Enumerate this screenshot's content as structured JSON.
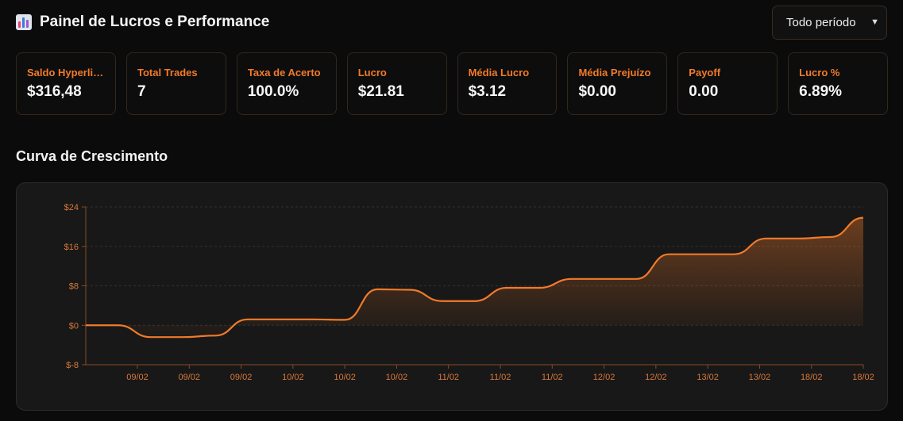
{
  "header": {
    "title": "Painel de Lucros e Performance",
    "title_icon": "bar-chart-icon",
    "period_select": {
      "value": "Todo período",
      "icon": "chevron-down-icon"
    }
  },
  "cards": [
    {
      "label": "Saldo Hyperliquid",
      "value": "$316,48"
    },
    {
      "label": "Total Trades",
      "value": "7"
    },
    {
      "label": "Taxa de Acerto",
      "value": "100.0%"
    },
    {
      "label": "Lucro",
      "value": "$21.81"
    },
    {
      "label": "Média Lucro",
      "value": "$3.12"
    },
    {
      "label": "Média Prejuízo",
      "value": "$0.00"
    },
    {
      "label": "Payoff",
      "value": "0.00"
    },
    {
      "label": "Lucro %",
      "value": "6.89%"
    }
  ],
  "section": {
    "title": "Curva de Crescimento"
  },
  "colors": {
    "accent": "#f27a2a",
    "background": "#0b0b0b",
    "panel": "#181818"
  },
  "chart_data": {
    "type": "area",
    "title": "Curva de Crescimento",
    "ylim": [
      -8,
      24
    ],
    "y_ticks": [
      24,
      16,
      8,
      0,
      -8
    ],
    "y_tick_labels": [
      "$24",
      "$16",
      "$8",
      "$0",
      "$-8"
    ],
    "x_tick_labels": [
      "09/02",
      "09/02",
      "09/02",
      "10/02",
      "10/02",
      "10/02",
      "11/02",
      "11/02",
      "11/02",
      "12/02",
      "12/02",
      "13/02",
      "13/02",
      "18/02",
      "18/02"
    ],
    "grid": "horizontal dashed",
    "series": [
      {
        "values": [
          0,
          0,
          -2.4,
          -2.4,
          -2.1,
          1.2,
          1.2,
          1.2,
          1.1,
          7.3,
          7.2,
          4.9,
          4.9,
          7.6,
          7.6,
          9.4,
          9.4,
          9.4,
          14.4,
          14.4,
          14.4,
          17.6,
          17.6,
          17.9,
          21.81
        ]
      }
    ],
    "grid_on": true
  }
}
